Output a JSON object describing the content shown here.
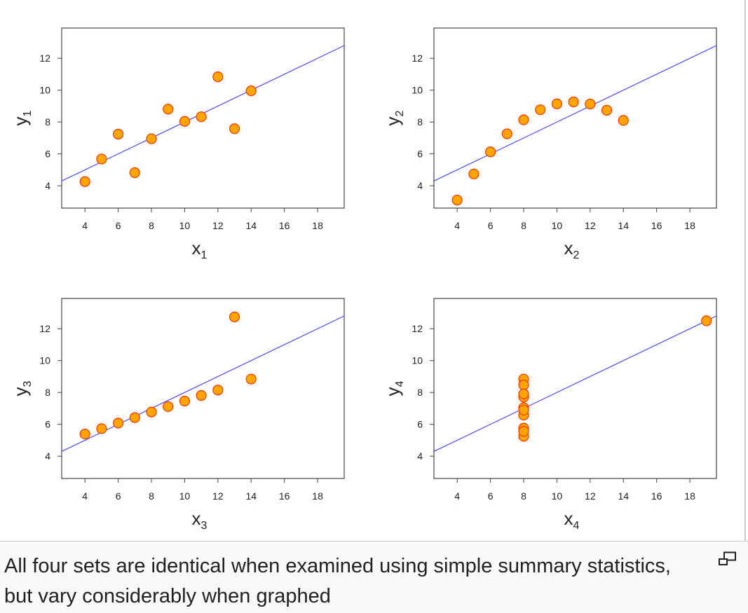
{
  "caption": {
    "text": "All four sets are identical when examined using simple summary statistics, but vary considerably when graphed",
    "icon": "magnify-icon"
  },
  "colors": {
    "points_fill": "#ffa500",
    "points_stroke": "#ff3300",
    "regression_line": "#4a4aff",
    "frame": "#444444",
    "caption_background": "#f8f9fa"
  },
  "chart_data": [
    {
      "type": "scatter",
      "xlabel": "x",
      "xlabel_sub": "1",
      "ylabel": "y",
      "ylabel_sub": "1",
      "xlim": [
        2.6,
        19.6
      ],
      "ylim": [
        2.6,
        13.9
      ],
      "xticks": [
        4,
        6,
        8,
        10,
        12,
        14,
        16,
        18
      ],
      "yticks": [
        4,
        6,
        8,
        10,
        12
      ],
      "grid": false,
      "fit_line": {
        "intercept": 3.0,
        "slope": 0.5
      },
      "x": [
        10,
        8,
        13,
        9,
        11,
        14,
        6,
        4,
        12,
        7,
        5
      ],
      "y": [
        8.04,
        6.95,
        7.58,
        8.81,
        8.33,
        9.96,
        7.24,
        4.26,
        10.84,
        4.82,
        5.68
      ]
    },
    {
      "type": "scatter",
      "xlabel": "x",
      "xlabel_sub": "2",
      "ylabel": "y",
      "ylabel_sub": "2",
      "xlim": [
        2.6,
        19.6
      ],
      "ylim": [
        2.6,
        13.9
      ],
      "xticks": [
        4,
        6,
        8,
        10,
        12,
        14,
        16,
        18
      ],
      "yticks": [
        4,
        6,
        8,
        10,
        12
      ],
      "grid": false,
      "fit_line": {
        "intercept": 3.0,
        "slope": 0.5
      },
      "x": [
        10,
        8,
        13,
        9,
        11,
        14,
        6,
        4,
        12,
        7,
        5
      ],
      "y": [
        9.14,
        8.14,
        8.74,
        8.77,
        9.26,
        8.1,
        6.13,
        3.1,
        9.13,
        7.26,
        4.74
      ]
    },
    {
      "type": "scatter",
      "xlabel": "x",
      "xlabel_sub": "3",
      "ylabel": "y",
      "ylabel_sub": "3",
      "xlim": [
        2.6,
        19.6
      ],
      "ylim": [
        2.6,
        13.9
      ],
      "xticks": [
        4,
        6,
        8,
        10,
        12,
        14,
        16,
        18
      ],
      "yticks": [
        4,
        6,
        8,
        10,
        12
      ],
      "grid": false,
      "fit_line": {
        "intercept": 3.0,
        "slope": 0.5
      },
      "x": [
        10,
        8,
        13,
        9,
        11,
        14,
        6,
        4,
        12,
        7,
        5
      ],
      "y": [
        7.46,
        6.77,
        12.74,
        7.11,
        7.81,
        8.84,
        6.08,
        5.39,
        8.15,
        6.42,
        5.73
      ]
    },
    {
      "type": "scatter",
      "xlabel": "x",
      "xlabel_sub": "4",
      "ylabel": "y",
      "ylabel_sub": "4",
      "xlim": [
        2.6,
        19.6
      ],
      "ylim": [
        2.6,
        13.9
      ],
      "xticks": [
        4,
        6,
        8,
        10,
        12,
        14,
        16,
        18
      ],
      "yticks": [
        4,
        6,
        8,
        10,
        12
      ],
      "grid": false,
      "fit_line": {
        "intercept": 3.0,
        "slope": 0.5
      },
      "x": [
        8,
        8,
        8,
        8,
        8,
        8,
        8,
        19,
        8,
        8,
        8
      ],
      "y": [
        6.58,
        5.76,
        7.71,
        8.84,
        8.47,
        7.04,
        5.25,
        12.5,
        5.56,
        7.91,
        6.89
      ]
    }
  ]
}
